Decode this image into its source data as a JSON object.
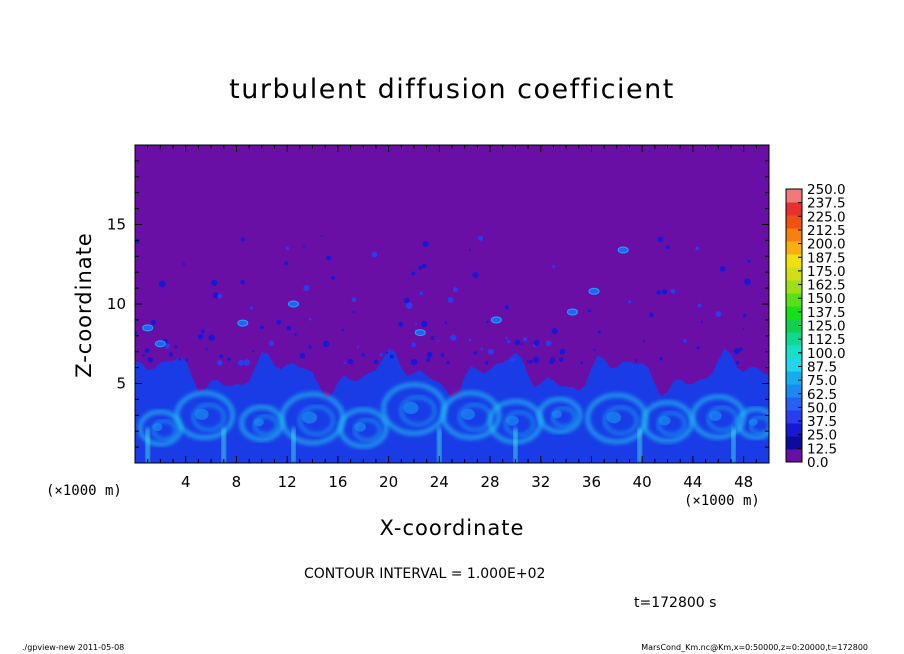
{
  "chart_data": {
    "type": "heatmap",
    "title": "turbulent diffusion coefficient",
    "xlabel": "X-coordinate",
    "ylabel": "Z-coordinate",
    "x_unit_left": "(×1000 m)",
    "x_unit_right": "(×1000 m)",
    "xlim": [
      0,
      50
    ],
    "ylim": [
      0,
      20
    ],
    "x_ticks": [
      4,
      8,
      12,
      16,
      20,
      24,
      28,
      32,
      36,
      40,
      44,
      48
    ],
    "y_ticks": [
      5,
      10,
      15
    ],
    "colorbar": {
      "levels": [
        "250.0",
        "237.5",
        "225.0",
        "212.5",
        "200.0",
        "187.5",
        "175.0",
        "162.5",
        "150.0",
        "137.5",
        "125.0",
        "112.5",
        "100.0",
        "87.5",
        "75.0",
        "62.5",
        "50.0",
        "37.5",
        "25.0",
        "12.5",
        "0.0"
      ],
      "colors_low_to_high": [
        "#6a0fa5",
        "#0b0b9e",
        "#1818d4",
        "#2a3cf0",
        "#2660f5",
        "#1a8af0",
        "#14aef0",
        "#22d4ec",
        "#18e0c8",
        "#10d890",
        "#10d050",
        "#18e018",
        "#5ae018",
        "#9ee018",
        "#d0e018",
        "#f0e010",
        "#f8b010",
        "#f88010",
        "#f05010",
        "#e83030",
        "#f07a7a"
      ]
    },
    "background_value": "0.0",
    "description_values": {
      "turbulent_layer_top_z": 6,
      "scattered_cells_max_z": 14
    }
  },
  "annotations": {
    "contour_interval": "CONTOUR INTERVAL = 1.000E+02",
    "time": "t=172800  s",
    "footer_left": "./gpview-new   2011-05-08",
    "footer_right": "MarsCond_Km.nc@Km,x=0:50000,z=0:20000,t=172800"
  },
  "colors": {
    "background_purple": "#6a0fa5",
    "frame": "#000000"
  }
}
